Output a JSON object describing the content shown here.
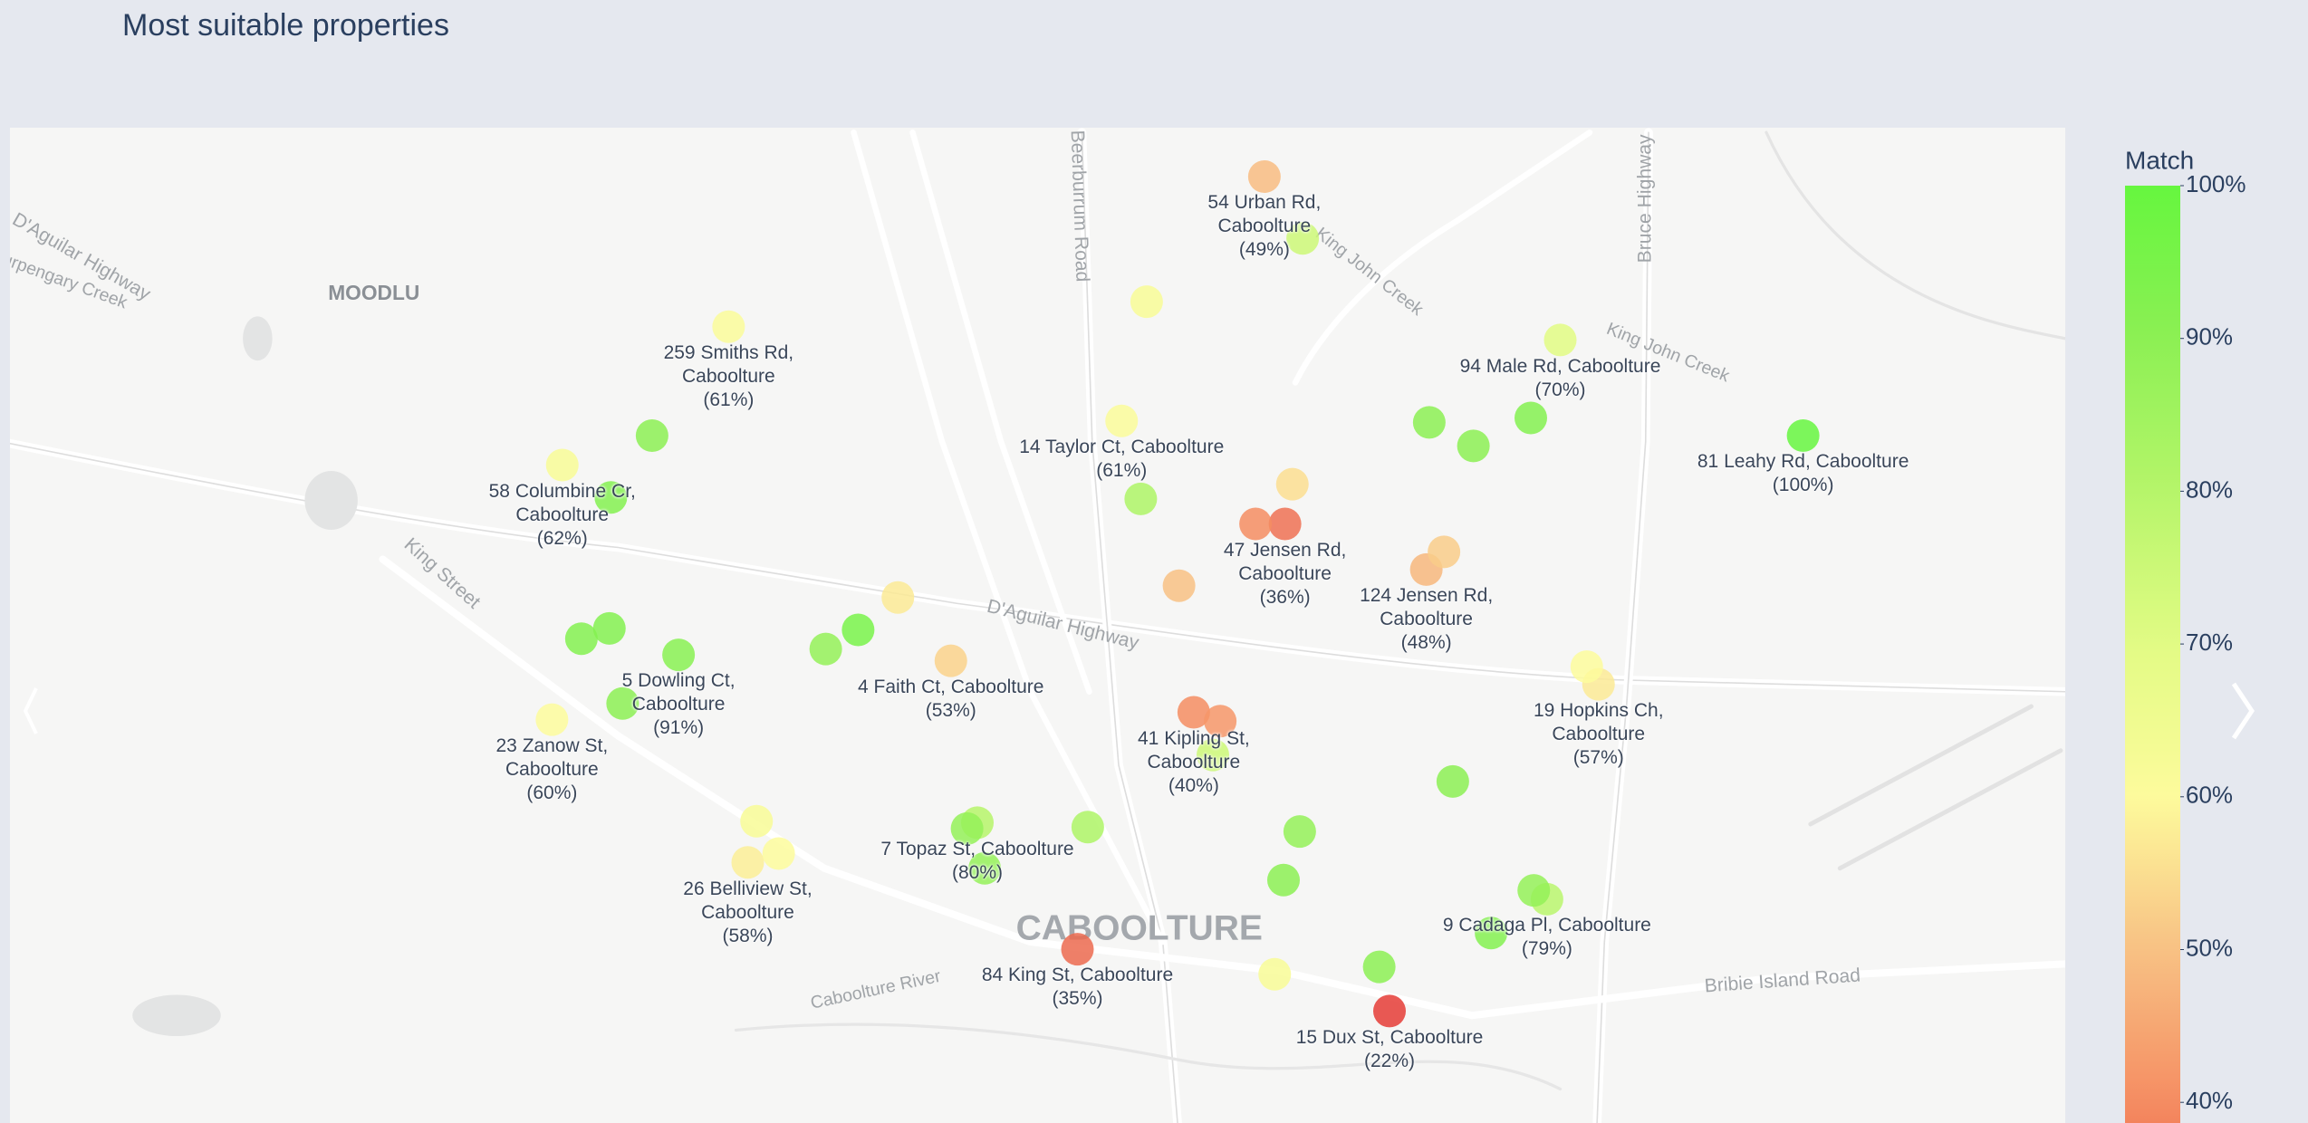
{
  "map": {
    "title": "Most suitable properties",
    "colorbar": {
      "title": "Match",
      "ticks": [
        {
          "value": 100,
          "label": "100%"
        },
        {
          "value": 90,
          "label": "90%"
        },
        {
          "value": 80,
          "label": "80%"
        },
        {
          "value": 70,
          "label": "70%"
        },
        {
          "value": 60,
          "label": "60%"
        },
        {
          "value": 50,
          "label": "50%"
        },
        {
          "value": 40,
          "label": "40%"
        }
      ]
    },
    "colorscale": [
      [
        22,
        "#e53c36"
      ],
      [
        35,
        "#ec6a4f"
      ],
      [
        40,
        "#f58d62"
      ],
      [
        50,
        "#f8c184"
      ],
      [
        60,
        "#fdfb9c"
      ],
      [
        70,
        "#e2fb84"
      ],
      [
        80,
        "#b6f56a"
      ],
      [
        90,
        "#8cf054"
      ],
      [
        100,
        "#66f63f"
      ]
    ],
    "place_labels": [
      "MOODLU",
      "CABOOLTURE",
      "D'Aguilar Highway",
      "D'Aguilar Highway",
      "King Street",
      "Beerburrum Road",
      "Bruce Highway",
      "Bribie Island Road",
      "Caboolture River",
      "King John Creek",
      "King John Creek",
      "Burpengary Creek"
    ],
    "points": [
      {
        "address": "54 Urban Rd, Caboolture",
        "match_label": "(49%)",
        "match": 49
      },
      {
        "address": "259 Smiths Rd, Caboolture",
        "match_label": "(61%)",
        "match": 61
      },
      {
        "address": "14 Taylor Ct, Caboolture",
        "match_label": "(61%)",
        "match": 61
      },
      {
        "address": "94 Male Rd, Caboolture",
        "match_label": "(70%)",
        "match": 70
      },
      {
        "address": "81 Leahy Rd, Caboolture",
        "match_label": "(100%)",
        "match": 100
      },
      {
        "address": "58 Columbine Cr, Caboolture",
        "match_label": "(62%)",
        "match": 62
      },
      {
        "address": "47 Jensen Rd, Caboolture",
        "match_label": "(36%)",
        "match": 36
      },
      {
        "address": "124 Jensen Rd, Caboolture",
        "match_label": "(48%)",
        "match": 48
      },
      {
        "address": "4 Faith Ct, Caboolture",
        "match_label": "(53%)",
        "match": 53
      },
      {
        "address": "5 Dowling Ct, Caboolture",
        "match_label": "(91%)",
        "match": 91
      },
      {
        "address": "23 Zanow St, Caboolture",
        "match_label": "(60%)",
        "match": 60
      },
      {
        "address": "41 Kipling St, Caboolture",
        "match_label": "(40%)",
        "match": 40
      },
      {
        "address": "19 Hopkins Ch, Caboolture",
        "match_label": "(57%)",
        "match": 57
      },
      {
        "address": "7 Topaz St, Caboolture",
        "match_label": "(80%)",
        "match": 80
      },
      {
        "address": "26 Belliview St, Caboolture",
        "match_label": "(58%)",
        "match": 58
      },
      {
        "address": "9 Cadaga Pl, Caboolture",
        "match_label": "(79%)",
        "match": 79
      },
      {
        "address": "84 King St, Caboolture",
        "match_label": "(35%)",
        "match": 35
      },
      {
        "address": "15 Dux St, Caboolture",
        "match_label": "(22%)",
        "match": 22
      },
      {
        "match_label": "(62%)",
        "match": 62
      },
      {
        "match": 75
      },
      {
        "match": 62
      },
      {
        "match": 90
      },
      {
        "match": 92
      },
      {
        "match": 82
      },
      {
        "match": 55
      },
      {
        "match": 40
      },
      {
        "match": 52
      },
      {
        "match": 50
      },
      {
        "match": 57
      },
      {
        "match": 90
      },
      {
        "match": 90
      },
      {
        "match": 92
      },
      {
        "match": 92
      },
      {
        "match": 92
      },
      {
        "match": 90
      },
      {
        "match": 88
      },
      {
        "match": 95
      },
      {
        "match": 60
      },
      {
        "match": 42
      },
      {
        "match": 75
      },
      {
        "match": 90
      },
      {
        "match": 62
      },
      {
        "match": 60
      },
      {
        "match": 88
      },
      {
        "match": 88
      },
      {
        "match": 82
      },
      {
        "match": 88
      },
      {
        "match": 90
      },
      {
        "match": 88
      },
      {
        "match": 92
      },
      {
        "match": 62
      },
      {
        "match": 90
      }
    ]
  }
}
